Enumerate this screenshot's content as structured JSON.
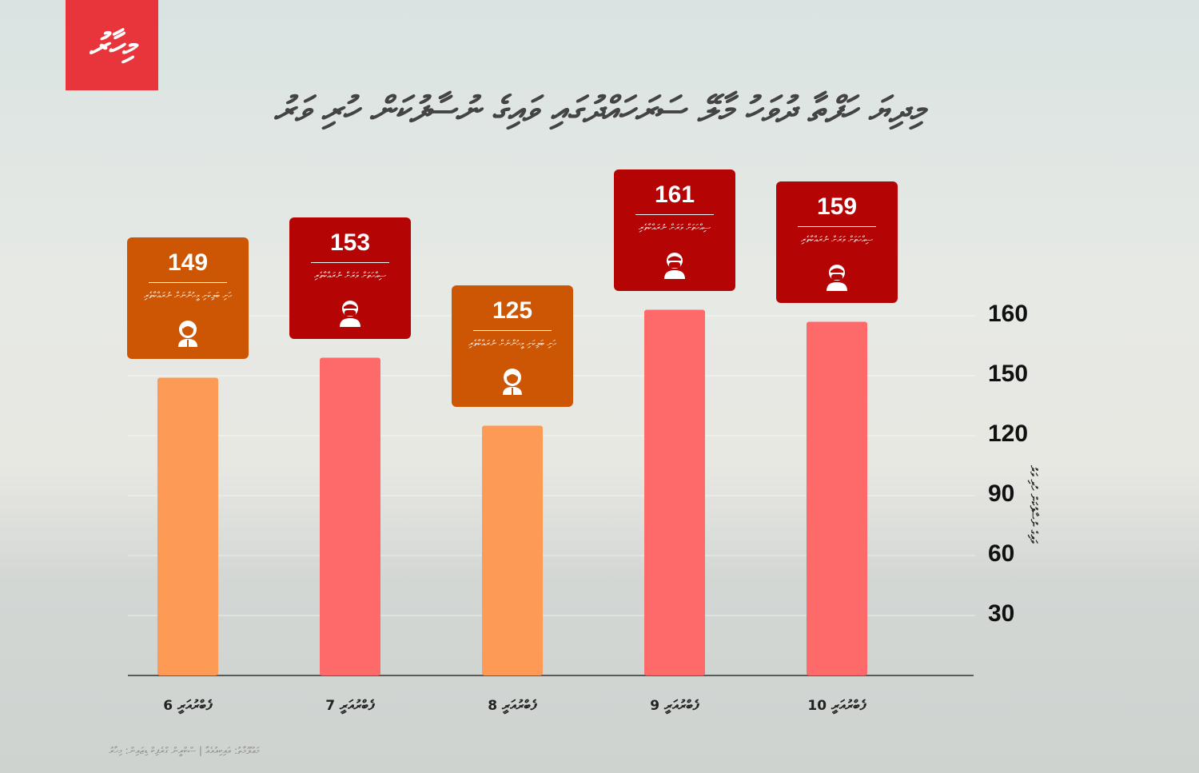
{
  "logo": "މިހާރު",
  "title": "މިދިޔަ ހަފްތާ ދުވަހު މާލޭ ސަރަހައްދުގައި ވައިގެ ނުސާފުކަން ހުރި ވަރު",
  "source": "މަޢުލޫމާތު: އައިކިއުއެއާ | ސްކްރީން ގްރެފިކް ޑިޒައިން: މިހާރު",
  "colors": {
    "bar_orange": "#fd9a55",
    "bar_red": "#fe6a6a",
    "box_orange": "#cd5604",
    "box_red": "#b40404",
    "logo": "#e8343b"
  },
  "chart_data": {
    "type": "bar",
    "title": "މިދިޔަ ހަފްތާ ދުވަހު މާލޭ ސަރަހައްދުގައި ވައިގެ ނުސާފުކަން ހުރި ވަރު",
    "ylabel": "ވައިގެ ނުސާފުކަން ހުރި ވަރު",
    "xlabel": "",
    "categories": [
      "ފެބްރުއަރީ 6",
      "ފެބްރުއަރީ 7",
      "ފެބްރުއަރީ 8",
      "ފެބްރުއަރީ 9",
      "ފެބްރުއަރީ 10"
    ],
    "values": [
      149,
      153,
      125,
      161,
      159
    ],
    "yticks": [
      30,
      60,
      90,
      120,
      150,
      160
    ],
    "grid": true,
    "y_axis_side": "right",
    "bar_colors": [
      "orange",
      "red",
      "orange",
      "red",
      "red"
    ],
    "annotations": [
      {
        "value": "149",
        "label": "ހަށި ބަލިކަށި މީހުންނަށް ނުރައްކާތެރި",
        "icon": "person-icon",
        "color": "orange"
      },
      {
        "value": "153",
        "label": "ސިއްހަތަށް ވަރަށް ނުރައްކާތެރި",
        "icon": "masked-person-icon",
        "color": "red"
      },
      {
        "value": "125",
        "label": "ހަށި ބަލިކަށި މީހުންނަށް ނުރައްކާތެރި",
        "icon": "person-icon",
        "color": "orange"
      },
      {
        "value": "161",
        "label": "ސިއްހަތަށް ވަރަށް ނުރައްކާތެރި",
        "icon": "masked-person-icon",
        "color": "red"
      },
      {
        "value": "159",
        "label": "ސިއްހަތަށް ވަރަށް ނުރައްކާތެރި",
        "icon": "masked-person-icon",
        "color": "red"
      }
    ]
  }
}
